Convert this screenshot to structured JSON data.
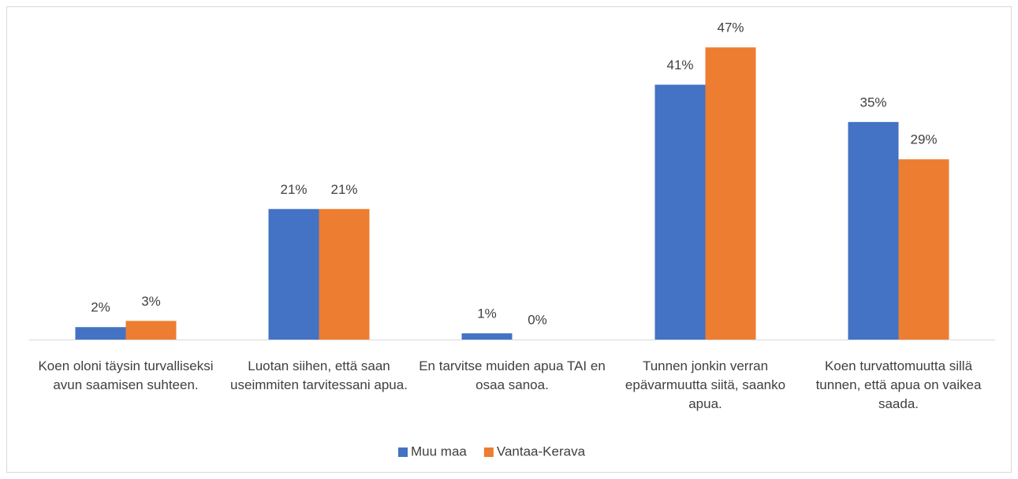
{
  "chart_data": {
    "type": "bar",
    "categories": [
      "Koen oloni täysin turvalliseksi avun saamisen suhteen.",
      "Luotan siihen, että saan useimmiten tarvitessani apua.",
      "En tarvitse muiden apua TAI en osaa sanoa.",
      "Tunnen jonkin verran epävarmuutta siitä, saanko apua.",
      "Koen turvattomuutta sillä tunnen, että apua on vaikea saada."
    ],
    "series": [
      {
        "name": "Muu maa",
        "color": "#4472c4",
        "values": [
          2,
          21,
          1,
          41,
          35
        ],
        "value_labels": [
          "2%",
          "21%",
          "1%",
          "41%",
          "35%"
        ]
      },
      {
        "name": "Vantaa-Kerava",
        "color": "#ed7d31",
        "values": [
          3,
          21,
          0,
          47,
          29
        ],
        "value_labels": [
          "3%",
          "21%",
          "0%",
          "47%",
          "29%"
        ]
      }
    ],
    "legend": "bottom"
  }
}
